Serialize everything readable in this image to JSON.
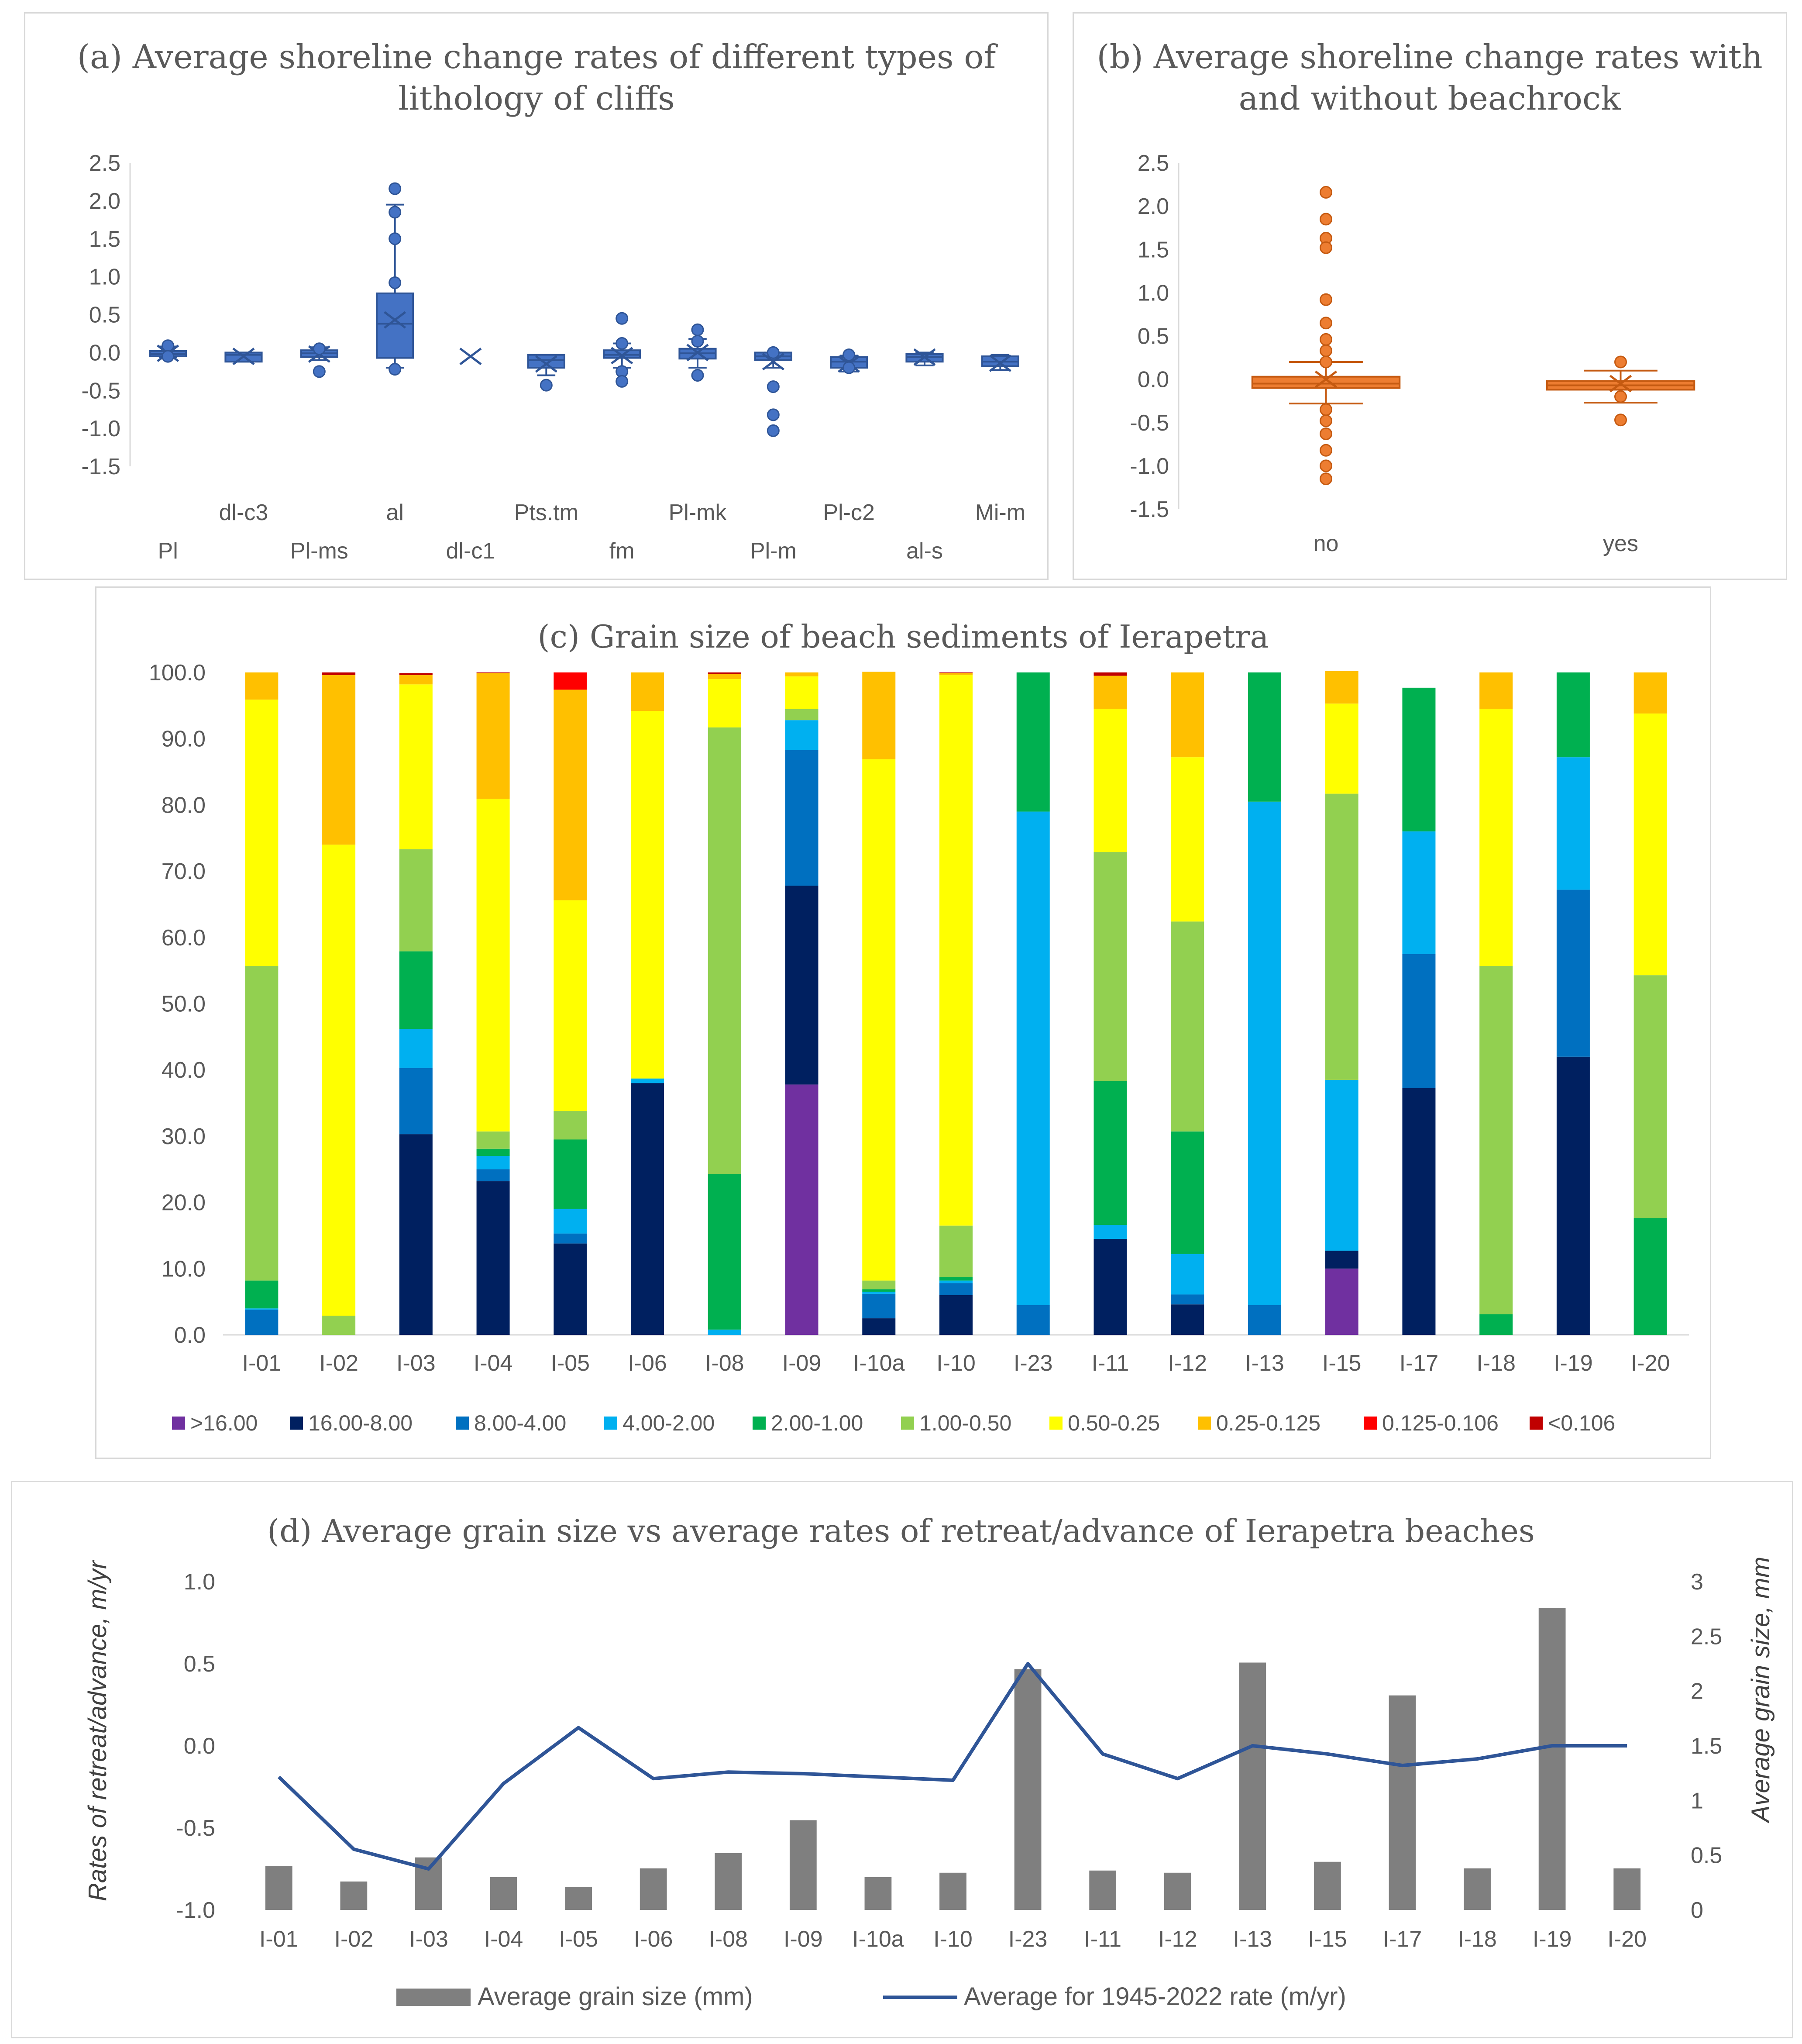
{
  "colors": {
    "box_a": "#4472c4",
    "box_a_dark": "#2f5597",
    "box_b": "#ed7d31",
    "box_b_dark": "#c55a11",
    "axis": "#d9d9d9",
    "text": "#595959",
    "bar_grain": "#7f7f7f",
    "line_rate": "#2f5597"
  },
  "chart_data": [
    {
      "id": "a",
      "type": "box",
      "title": "(a) Average shoreline change rates of different types of lithology of cliffs",
      "title_lines": [
        "(a) Average shoreline change rates of different types of",
        "lithology of cliffs"
      ],
      "ylim": [
        -1.5,
        2.5
      ],
      "yticks": [
        "2.5",
        "2.0",
        "1.5",
        "1.0",
        "0.5",
        "0.0",
        "-0.5",
        "-1.0",
        "-1.5"
      ],
      "categories": [
        "Pl",
        "dl-c3",
        "Pl-ms",
        "al",
        "dl-c1",
        "Pts.tm",
        "fm",
        "Pl-mk",
        "Pl-m",
        "Pl-c2",
        "al-s",
        "Mi-m"
      ],
      "boxes": [
        {
          "cat": "Pl",
          "q1": -0.05,
          "median": -0.02,
          "q3": 0.02,
          "wlo": -0.06,
          "whi": 0.08,
          "mean": -0.01,
          "outliers": [
            0.09,
            -0.05
          ]
        },
        {
          "cat": "dl-c3",
          "q1": -0.12,
          "median": -0.03,
          "q3": 0.0,
          "wlo": -0.12,
          "whi": 0.0,
          "mean": -0.05,
          "outliers": []
        },
        {
          "cat": "Pl-ms",
          "q1": -0.06,
          "median": -0.01,
          "q3": 0.03,
          "wlo": -0.1,
          "whi": 0.07,
          "mean": -0.02,
          "outliers": [
            -0.25,
            0.05
          ]
        },
        {
          "cat": "al",
          "q1": -0.07,
          "median": 0.38,
          "q3": 0.78,
          "wlo": -0.2,
          "whi": 1.95,
          "mean": 0.43,
          "outliers": [
            2.16,
            1.85,
            1.5,
            0.92,
            -0.22
          ]
        },
        {
          "cat": "dl-c1",
          "q1": null,
          "median": null,
          "q3": null,
          "wlo": null,
          "whi": null,
          "mean": -0.05,
          "outliers": []
        },
        {
          "cat": "Pts.tm",
          "q1": -0.2,
          "median": -0.1,
          "q3": -0.03,
          "wlo": -0.3,
          "whi": -0.03,
          "mean": -0.15,
          "outliers": [
            -0.43
          ]
        },
        {
          "cat": "fm",
          "q1": -0.07,
          "median": -0.03,
          "q3": 0.03,
          "wlo": -0.2,
          "whi": 0.12,
          "mean": -0.04,
          "outliers": [
            0.45,
            0.12,
            -0.25,
            -0.38
          ]
        },
        {
          "cat": "Pl-mk",
          "q1": -0.08,
          "median": -0.01,
          "q3": 0.05,
          "wlo": -0.2,
          "whi": 0.18,
          "mean": 0.0,
          "outliers": [
            0.3,
            0.15,
            -0.3
          ]
        },
        {
          "cat": "Pl-m",
          "q1": -0.1,
          "median": -0.05,
          "q3": 0.0,
          "wlo": -0.2,
          "whi": 0.0,
          "mean": -0.12,
          "outliers": [
            0.0,
            -0.45,
            -0.82,
            -1.03
          ]
        },
        {
          "cat": "Pl-c2",
          "q1": -0.2,
          "median": -0.12,
          "q3": -0.06,
          "wlo": -0.25,
          "whi": -0.04,
          "mean": -0.15,
          "outliers": [
            -0.03,
            -0.2
          ]
        },
        {
          "cat": "al-s",
          "q1": -0.12,
          "median": -0.06,
          "q3": -0.02,
          "wlo": -0.17,
          "whi": 0.0,
          "mean": -0.06,
          "outliers": []
        },
        {
          "cat": "Mi-m",
          "q1": -0.18,
          "median": -0.12,
          "q3": -0.05,
          "wlo": -0.23,
          "whi": -0.03,
          "mean": -0.14,
          "outliers": []
        }
      ]
    },
    {
      "id": "b",
      "type": "box",
      "title": "(b) Average shoreline change rates with and without beachrock",
      "title_lines": [
        "(b) Average shoreline change rates with",
        "and without beachrock"
      ],
      "ylim": [
        -1.5,
        2.5
      ],
      "yticks": [
        "2.5",
        "2.0",
        "1.5",
        "1.0",
        "0.5",
        "0.0",
        "-0.5",
        "-1.0",
        "-1.5"
      ],
      "categories": [
        "no",
        "yes"
      ],
      "boxes": [
        {
          "cat": "no",
          "q1": -0.1,
          "median": -0.05,
          "q3": 0.03,
          "wlo": -0.28,
          "whi": 0.2,
          "mean": 0.0,
          "outliers": [
            2.16,
            1.85,
            1.63,
            1.52,
            0.92,
            0.65,
            0.46,
            0.33,
            0.2,
            -0.35,
            -0.48,
            -0.63,
            -0.82,
            -1.0,
            -1.15
          ]
        },
        {
          "cat": "yes",
          "q1": -0.12,
          "median": -0.07,
          "q3": -0.02,
          "wlo": -0.27,
          "whi": 0.1,
          "mean": -0.05,
          "outliers": [
            0.2,
            -0.47,
            -0.2
          ]
        }
      ]
    },
    {
      "id": "c",
      "type": "bar",
      "stacked": true,
      "title": "(c) Grain size of beach sediments of Ierapetra",
      "ylim": [
        0,
        100
      ],
      "yticks": [
        "100.0",
        "90.0",
        "80.0",
        "70.0",
        "60.0",
        "50.0",
        "40.0",
        "30.0",
        "20.0",
        "10.0",
        "0.0"
      ],
      "categories": [
        "I-01",
        "I-02",
        "I-03",
        "I-04",
        "I-05",
        "I-06",
        "I-08",
        "I-09",
        "I-10a",
        "I-10",
        "I-23",
        "I-11",
        "I-12",
        "I-13",
        "I-15",
        "I-17",
        "I-18",
        "I-19",
        "I-20"
      ],
      "series": [
        {
          "name": ">16.00",
          "color": "#7030a0",
          "values": [
            0,
            0,
            0,
            0,
            0,
            0,
            0,
            37.8,
            0,
            0,
            0,
            0,
            0,
            0,
            10.0,
            0,
            0,
            0,
            0
          ]
        },
        {
          "name": "16.00-8.00",
          "color": "#002060",
          "values": [
            0,
            0,
            30.3,
            23.2,
            13.8,
            38.0,
            0,
            30.0,
            2.5,
            6.0,
            0,
            14.5,
            4.6,
            0,
            2.7,
            37.3,
            0,
            42.0,
            0
          ]
        },
        {
          "name": "8.00-4.00",
          "color": "#0070c0",
          "values": [
            3.8,
            0,
            10.0,
            1.8,
            1.5,
            0,
            0,
            20.5,
            3.7,
            1.8,
            4.5,
            0,
            1.5,
            4.5,
            0,
            20.2,
            0,
            25.2,
            0
          ]
        },
        {
          "name": "4.00-2.00",
          "color": "#00b0f0",
          "values": [
            0.2,
            0,
            5.9,
            2.0,
            3.7,
            0.7,
            0.8,
            4.5,
            0.3,
            0.4,
            74.5,
            2.1,
            6.1,
            76.0,
            25.8,
            18.5,
            0,
            20.0,
            0
          ]
        },
        {
          "name": "2.00-1.00",
          "color": "#00b050",
          "values": [
            4.2,
            0,
            11.7,
            1.1,
            10.5,
            0,
            23.5,
            0,
            0.4,
            0.5,
            21.0,
            21.7,
            18.5,
            19.5,
            0,
            21.7,
            3.1,
            12.8,
            17.6
          ]
        },
        {
          "name": "1.00-0.50",
          "color": "#92d050",
          "values": [
            47.5,
            2.9,
            15.4,
            2.6,
            4.3,
            0,
            67.4,
            1.7,
            1.3,
            7.8,
            0,
            34.6,
            31.7,
            0,
            43.2,
            0,
            52.6,
            0,
            36.7
          ]
        },
        {
          "name": "0.50-0.25",
          "color": "#ffff00",
          "values": [
            40.2,
            71.1,
            24.9,
            50.2,
            31.8,
            55.5,
            7.3,
            4.9,
            78.7,
            83.1,
            0,
            21.6,
            24.8,
            0,
            13.6,
            0,
            38.8,
            0,
            39.5
          ]
        },
        {
          "name": "0.25-0.125",
          "color": "#ffc000",
          "values": [
            4.1,
            25.6,
            1.4,
            19.0,
            31.8,
            5.8,
            0.8,
            0.6,
            13.2,
            0.3,
            0,
            5.0,
            12.8,
            0,
            4.9,
            0,
            5.5,
            0,
            6.2
          ]
        },
        {
          "name": "0.125-0.106",
          "color": "#ff0000",
          "values": [
            0,
            0,
            0,
            0,
            2.6,
            0,
            0,
            0,
            0,
            0,
            0,
            0,
            0,
            0,
            0,
            0,
            0,
            0,
            0
          ]
        },
        {
          "name": "<0.106",
          "color": "#c00000",
          "values": [
            0,
            0.4,
            0.3,
            0.1,
            0,
            0,
            0.2,
            0,
            0,
            0.1,
            0,
            0.5,
            0,
            0,
            0,
            0,
            0,
            0,
            0
          ]
        }
      ]
    },
    {
      "id": "d",
      "type": "bar",
      "combo": "bar+line",
      "title": "(d) Average grain size vs average rates of retreat/advance of Ierapetra beaches",
      "ylabel": "Rates of retreat/advance, m/yr",
      "y2label": "Average grain size, mm",
      "ylim": [
        -1.0,
        1.0
      ],
      "y2lim": [
        0,
        3
      ],
      "yticks": [
        "1.0",
        "0.5",
        "0.0",
        "-0.5",
        "-1.0"
      ],
      "y2ticks": [
        "3",
        "2.5",
        "2",
        "1.5",
        "1",
        "0.5",
        "0"
      ],
      "categories": [
        "I-01",
        "I-02",
        "I-03",
        "I-04",
        "I-05",
        "I-06",
        "I-08",
        "I-09",
        "I-10a",
        "I-10",
        "I-23",
        "I-11",
        "I-12",
        "I-13",
        "I-15",
        "I-17",
        "I-18",
        "I-19",
        "I-20"
      ],
      "series": [
        {
          "name": "Average grain size (mm)",
          "axis": "right",
          "kind": "bar",
          "color": "#7f7f7f",
          "values": [
            0.4,
            0.26,
            0.48,
            0.3,
            0.21,
            0.38,
            0.52,
            0.82,
            0.3,
            0.34,
            2.2,
            0.36,
            0.34,
            2.26,
            0.44,
            1.96,
            0.38,
            2.76,
            0.38
          ]
        },
        {
          "name": "Average for 1945-2022 rate (m/yr)",
          "axis": "left",
          "kind": "line",
          "color": "#2f5597",
          "values": [
            -0.19,
            -0.63,
            -0.75,
            -0.23,
            0.11,
            -0.2,
            -0.16,
            -0.17,
            -0.19,
            -0.21,
            0.5,
            -0.05,
            -0.2,
            0.0,
            -0.05,
            -0.12,
            -0.08,
            0.0,
            0.0
          ]
        }
      ]
    }
  ]
}
